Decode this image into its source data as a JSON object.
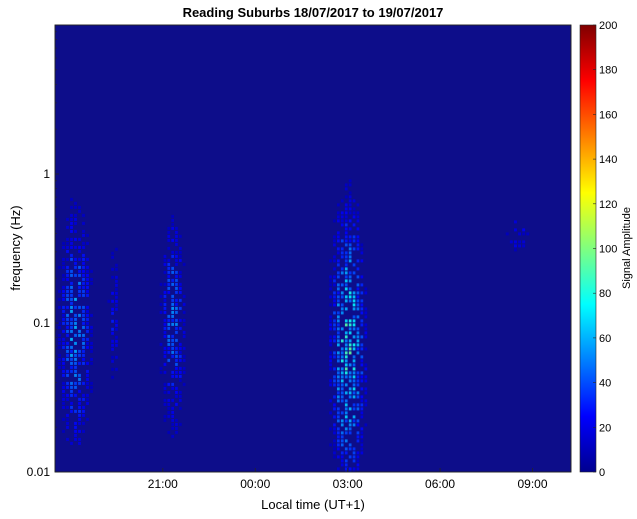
{
  "chart_data": {
    "type": "heatmap",
    "title": "Reading Suburbs 18/07/2017 to 19/07/2017",
    "xlabel": "Local time (UT+1)",
    "ylabel": "frequency (Hz)",
    "colorbar_label": "Signal Amplitude",
    "x_unit": "hours since 18/07/2017 00:00 local time",
    "xlim": [
      17.5,
      34.25
    ],
    "x_ticks": [
      {
        "value": 21,
        "label": "21:00"
      },
      {
        "value": 24,
        "label": "00:00"
      },
      {
        "value": 27,
        "label": "03:00"
      },
      {
        "value": 30,
        "label": "06:00"
      },
      {
        "value": 33,
        "label": "09:00"
      }
    ],
    "y_scale": "log",
    "ylim": [
      0.01,
      10
    ],
    "y_ticks": [
      {
        "value": 0.01,
        "label": "0.01"
      },
      {
        "value": 0.1,
        "label": "0.1"
      },
      {
        "value": 1,
        "label": "1"
      }
    ],
    "colorbar": {
      "colormap": "jet",
      "range": [
        0,
        200
      ],
      "ticks": [
        0,
        20,
        40,
        60,
        80,
        100,
        120,
        140,
        160,
        180,
        200
      ]
    },
    "background_color": "#0d0d8a",
    "events": [
      {
        "x_start": 17.6,
        "x_end": 18.9,
        "f_low": 0.015,
        "f_high": 5.0,
        "peak_f": 0.09,
        "peak_amplitude": 70
      },
      {
        "x_start": 19.2,
        "x_end": 19.7,
        "f_low": 0.02,
        "f_high": 1.5,
        "peak_f": 0.12,
        "peak_amplitude": 35
      },
      {
        "x_start": 20.9,
        "x_end": 21.9,
        "f_low": 0.015,
        "f_high": 3.0,
        "peak_f": 0.1,
        "peak_amplitude": 60
      },
      {
        "x_start": 26.4,
        "x_end": 27.8,
        "f_low": 0.01,
        "f_high": 8.0,
        "peak_f": 0.07,
        "peak_amplitude": 100
      },
      {
        "x_start": 32.0,
        "x_end": 33.2,
        "f_low": 0.25,
        "f_high": 0.8,
        "peak_f": 0.4,
        "peak_amplitude": 30
      }
    ]
  }
}
